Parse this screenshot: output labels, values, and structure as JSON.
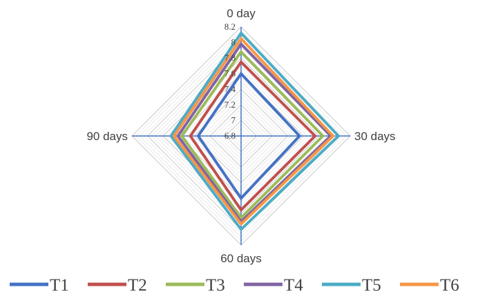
{
  "chart_data": {
    "type": "radar",
    "title": "",
    "categories": [
      "0 day",
      "30 days",
      "60 days",
      "90 days"
    ],
    "r_ticks": [
      "6.8",
      "7",
      "7.2",
      "7.4",
      "7.6",
      "7.8",
      "8",
      "8.2"
    ],
    "r_range": [
      6.8,
      8.2
    ],
    "grid": true,
    "legend_position": "bottom",
    "series": [
      {
        "name": "T1",
        "color": "#4472C4",
        "values": [
          7.6,
          7.55,
          7.6,
          7.35
        ]
      },
      {
        "name": "T2",
        "color": "#C0504D",
        "values": [
          7.75,
          7.75,
          7.75,
          7.45
        ]
      },
      {
        "name": "T3",
        "color": "#9BBB59",
        "values": [
          7.88,
          7.85,
          7.85,
          7.56
        ]
      },
      {
        "name": "T4",
        "color": "#8064A2",
        "values": [
          7.98,
          7.95,
          7.9,
          7.61
        ]
      },
      {
        "name": "T5",
        "color": "#4BACC6",
        "values": [
          8.12,
          8.05,
          8.0,
          7.7
        ]
      },
      {
        "name": "T6",
        "color": "#F79646",
        "values": [
          8.05,
          7.98,
          7.93,
          7.66
        ]
      }
    ]
  }
}
